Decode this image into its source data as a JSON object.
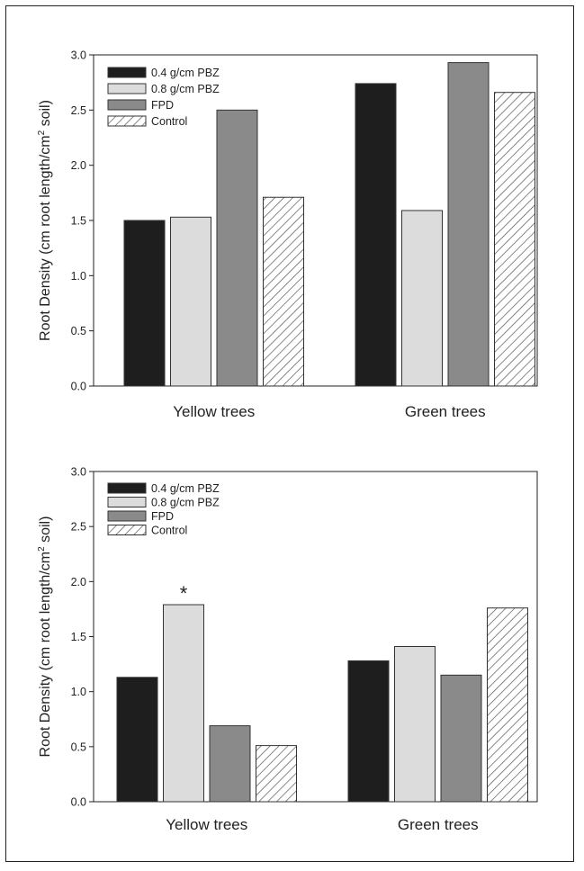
{
  "colors": {
    "pbz04": "#1e1e1e",
    "pbz08": "#dcdcdc",
    "fpd": "#8a8a8a",
    "control_hatch": "#555555",
    "axis": "#222222"
  },
  "chart_data": [
    {
      "type": "bar",
      "categories": [
        "Yellow trees",
        "Green trees"
      ],
      "series": [
        {
          "name": "0.4 g/cm PBZ",
          "values": [
            1.5,
            2.74
          ]
        },
        {
          "name": "0.8 g/cm PBZ",
          "values": [
            1.53,
            1.59
          ]
        },
        {
          "name": "FPD",
          "values": [
            2.5,
            2.93
          ]
        },
        {
          "name": "Control",
          "values": [
            1.71,
            2.66
          ]
        }
      ],
      "ylabel_main": "Root Density (cm root length/cm",
      "ylabel_sup": "2",
      "ylabel_tail": " soil)",
      "ylim": [
        0,
        3.0
      ],
      "yticks": [
        "0.0",
        "0.5",
        "1.0",
        "1.5",
        "2.0",
        "2.5",
        "3.0"
      ],
      "legend_placement": "top-left",
      "annotations": []
    },
    {
      "type": "bar",
      "categories": [
        "Yellow trees",
        "Green trees"
      ],
      "series": [
        {
          "name": "0.4 g/cm PBZ",
          "values": [
            1.13,
            1.28
          ]
        },
        {
          "name": "0.8 g/cm PBZ",
          "values": [
            1.79,
            1.41
          ]
        },
        {
          "name": "FPD",
          "values": [
            0.69,
            1.15
          ]
        },
        {
          "name": "Control",
          "values": [
            0.51,
            1.76
          ]
        }
      ],
      "ylabel_main": "Root Density (cm root length/cm",
      "ylabel_sup": "2",
      "ylabel_tail": " soil)",
      "ylim": [
        0,
        3.0
      ],
      "yticks": [
        "0.0",
        "0.5",
        "1.0",
        "1.5",
        "2.0",
        "2.5",
        "3.0"
      ],
      "legend_placement": "top-left",
      "annotations": [
        {
          "text": "*",
          "category": 0,
          "series": 1
        }
      ]
    }
  ]
}
